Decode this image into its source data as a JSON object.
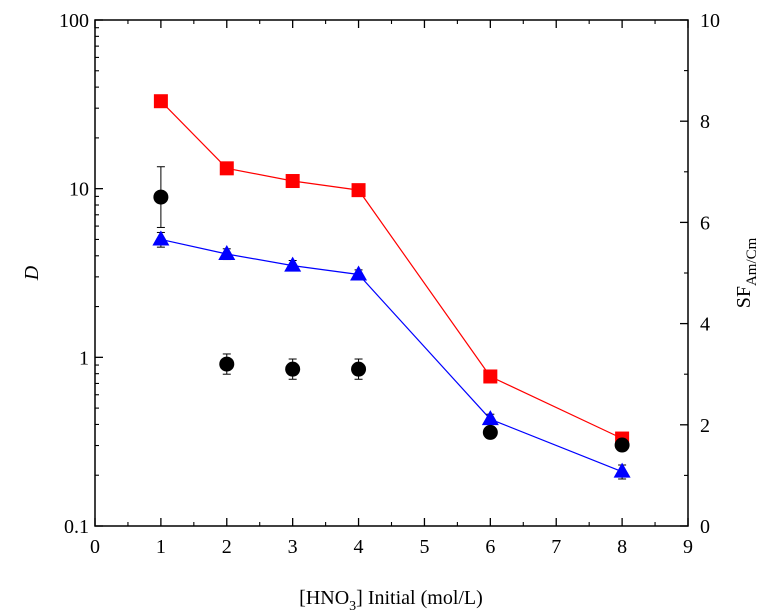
{
  "chart_data": {
    "type": "scatter",
    "xlabel": "[HNO3] Initial (mol/L)",
    "xlabel_parts": {
      "pre": "[HNO",
      "sub": "3",
      "post": "] Initial (mol/L)"
    },
    "ylabel": "D",
    "y2label": "SFAm/Cm",
    "y2label_parts": {
      "main": "SF",
      "sub": "Am/Cm"
    },
    "xlim": [
      0,
      9
    ],
    "ylim": [
      0.1,
      100
    ],
    "yscale": "log",
    "y2lim": [
      0,
      10
    ],
    "x_ticks": [
      "0",
      "1",
      "2",
      "3",
      "4",
      "5",
      "6",
      "7",
      "8",
      "9"
    ],
    "y_ticks": [
      "0.1",
      "1",
      "10",
      "100"
    ],
    "y2_ticks": [
      "0",
      "2",
      "4",
      "6",
      "8",
      "10"
    ],
    "grid": false,
    "series": [
      {
        "marker": "square",
        "color": "#ff0000",
        "axis": "left",
        "connected": true,
        "x": [
          1,
          2,
          3,
          4,
          6,
          8
        ],
        "y": [
          33,
          13.2,
          11.1,
          9.8,
          0.77,
          0.33
        ],
        "err": [
          1.5,
          0.6,
          0.5,
          0.4,
          0.04,
          0.02
        ]
      },
      {
        "marker": "triangle",
        "color": "#0000ff",
        "axis": "left",
        "connected": true,
        "x": [
          1,
          2,
          3,
          4,
          6,
          8
        ],
        "y": [
          5.0,
          4.1,
          3.5,
          3.1,
          0.43,
          0.21
        ],
        "err": [
          0.5,
          0.3,
          0.25,
          0.2,
          0.03,
          0.02
        ]
      },
      {
        "marker": "circle",
        "color": "#000000",
        "axis": "right",
        "connected": false,
        "x": [
          1,
          2,
          3,
          4,
          6,
          8
        ],
        "y": [
          6.5,
          3.2,
          3.1,
          3.1,
          1.85,
          1.6
        ],
        "err": [
          0.6,
          0.2,
          0.2,
          0.2,
          0.05,
          0.05
        ]
      }
    ]
  }
}
